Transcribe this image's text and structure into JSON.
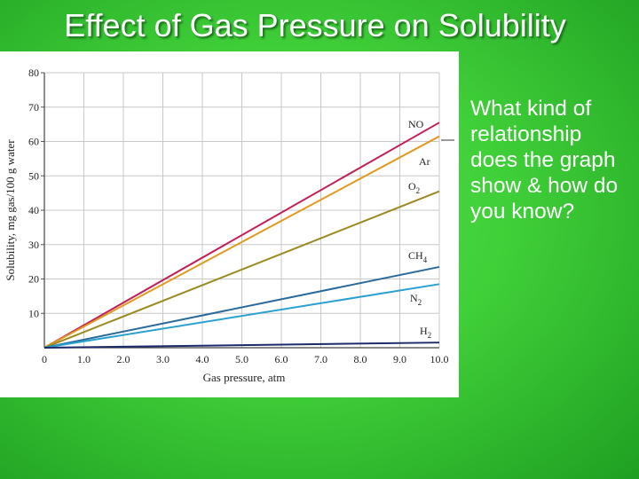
{
  "slide": {
    "title": "Effect of Gas Pressure on Solubility",
    "question": "What kind of relationship does the graph show & how do you know?"
  },
  "chart_data": {
    "type": "line",
    "xlabel": "Gas pressure, atm",
    "ylabel": "Solubility, mg gas/100 g water",
    "xlim": [
      0,
      10
    ],
    "ylim": [
      0,
      80
    ],
    "x_ticks": [
      "0",
      "1.0",
      "2.0",
      "3.0",
      "4.0",
      "5.0",
      "6.0",
      "7.0",
      "8.0",
      "9.0",
      "10.0"
    ],
    "y_ticks": [
      "10",
      "20",
      "30",
      "40",
      "50",
      "60",
      "70",
      "80"
    ],
    "grid": true,
    "series": [
      {
        "name": "NO",
        "sub": "",
        "color": "#c0205a",
        "points": [
          [
            0,
            0
          ],
          [
            10,
            65.5
          ]
        ]
      },
      {
        "name": "Ar",
        "sub": "",
        "color": "#e09a20",
        "points": [
          [
            0,
            0
          ],
          [
            10,
            61.5
          ]
        ]
      },
      {
        "name": "O",
        "sub": "2",
        "color": "#9a8a20",
        "points": [
          [
            0,
            0
          ],
          [
            10,
            45.5
          ]
        ]
      },
      {
        "name": "CH",
        "sub": "4",
        "color": "#2a6a9a",
        "points": [
          [
            0,
            0
          ],
          [
            10,
            23.5
          ]
        ]
      },
      {
        "name": "N",
        "sub": "2",
        "color": "#2aa0d0",
        "points": [
          [
            0,
            0
          ],
          [
            10,
            18.5
          ]
        ]
      },
      {
        "name": "H",
        "sub": "2",
        "color": "#1a2a6a",
        "points": [
          [
            0,
            0
          ],
          [
            10,
            1.5
          ]
        ]
      }
    ]
  }
}
